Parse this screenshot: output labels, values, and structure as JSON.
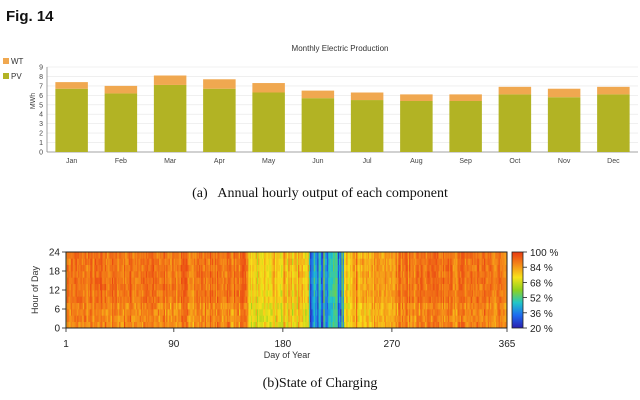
{
  "figure": {
    "label": "Fig. 14",
    "caption_a": "(a)   Annual hourly output of each component",
    "caption_b": "(b)State of Charging"
  },
  "chart_data": [
    {
      "type": "bar",
      "stacked": true,
      "title": "Monthly Electric Production",
      "ylabel": "MWh",
      "ylim": [
        0,
        9
      ],
      "yticks": [
        "0",
        "1",
        "2",
        "3",
        "4",
        "5",
        "6",
        "7",
        "8",
        "9"
      ],
      "categories": [
        "Jan",
        "Feb",
        "Mar",
        "Apr",
        "May",
        "Jun",
        "Jul",
        "Aug",
        "Sep",
        "Oct",
        "Nov",
        "Dec"
      ],
      "legend_placement": "top-left",
      "series": [
        {
          "name": "PV",
          "color": "#b2b324",
          "values": [
            6.7,
            6.2,
            7.1,
            6.7,
            6.3,
            5.7,
            5.5,
            5.4,
            5.4,
            6.1,
            5.8,
            6.1
          ]
        },
        {
          "name": "WT",
          "color": "#f0a850",
          "values": [
            0.7,
            0.8,
            1.0,
            1.0,
            1.0,
            0.8,
            0.8,
            0.7,
            0.7,
            0.8,
            0.9,
            0.8
          ]
        }
      ]
    },
    {
      "type": "heatmap",
      "xlabel": "Day of Year",
      "ylabel": "Hour of Day",
      "xlim": [
        1,
        365
      ],
      "ylim": [
        0,
        24
      ],
      "xticks": [
        "1",
        "90",
        "180",
        "270",
        "365"
      ],
      "yticks": [
        "0",
        "6",
        "12",
        "18",
        "24"
      ],
      "colorbar": {
        "range": [
          20,
          100
        ],
        "ticks": [
          "100 %",
          "84 %",
          "68 %",
          "52 %",
          "36 %",
          "20 %"
        ],
        "colors": [
          "#2a1fb0",
          "#1e6bf0",
          "#21c6c8",
          "#8fd21e",
          "#f7e21a",
          "#f58a18",
          "#e83a12"
        ]
      }
    }
  ]
}
